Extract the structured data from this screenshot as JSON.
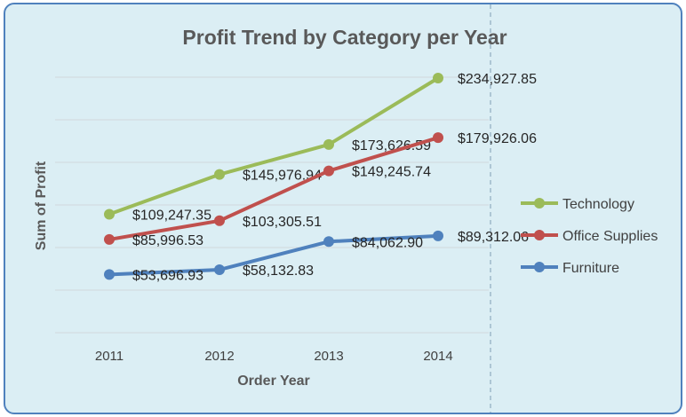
{
  "chart_data": {
    "type": "line",
    "title": "Profit Trend by Category per Year",
    "xlabel": "Order Year",
    "ylabel": "Sum of Profit",
    "categories": [
      "2011",
      "2012",
      "2013",
      "2014"
    ],
    "ylim": [
      0,
      275000
    ],
    "grid": true,
    "legend_position": "right",
    "series": [
      {
        "name": "Technology",
        "color": "#9bbb59",
        "values": [
          109247.35,
          145976.94,
          173626.59,
          234927.85
        ],
        "labels": [
          "$109,247.35",
          "$145,976.94",
          "$173,626.59",
          "$234,927.85"
        ]
      },
      {
        "name": "Office Supplies",
        "color": "#c0504d",
        "values": [
          85996.53,
          103305.51,
          149245.74,
          179926.06
        ],
        "labels": [
          "$85,996.53",
          "$103,305.51",
          "$149,245.74",
          "$179,926.06"
        ]
      },
      {
        "name": "Furniture",
        "color": "#4f81bd",
        "values": [
          53696.93,
          58132.83,
          84062.9,
          89312.06
        ],
        "labels": [
          "$53,696.93",
          "$58,132.83",
          "$84,062.90",
          "$89,312.06"
        ]
      }
    ]
  }
}
